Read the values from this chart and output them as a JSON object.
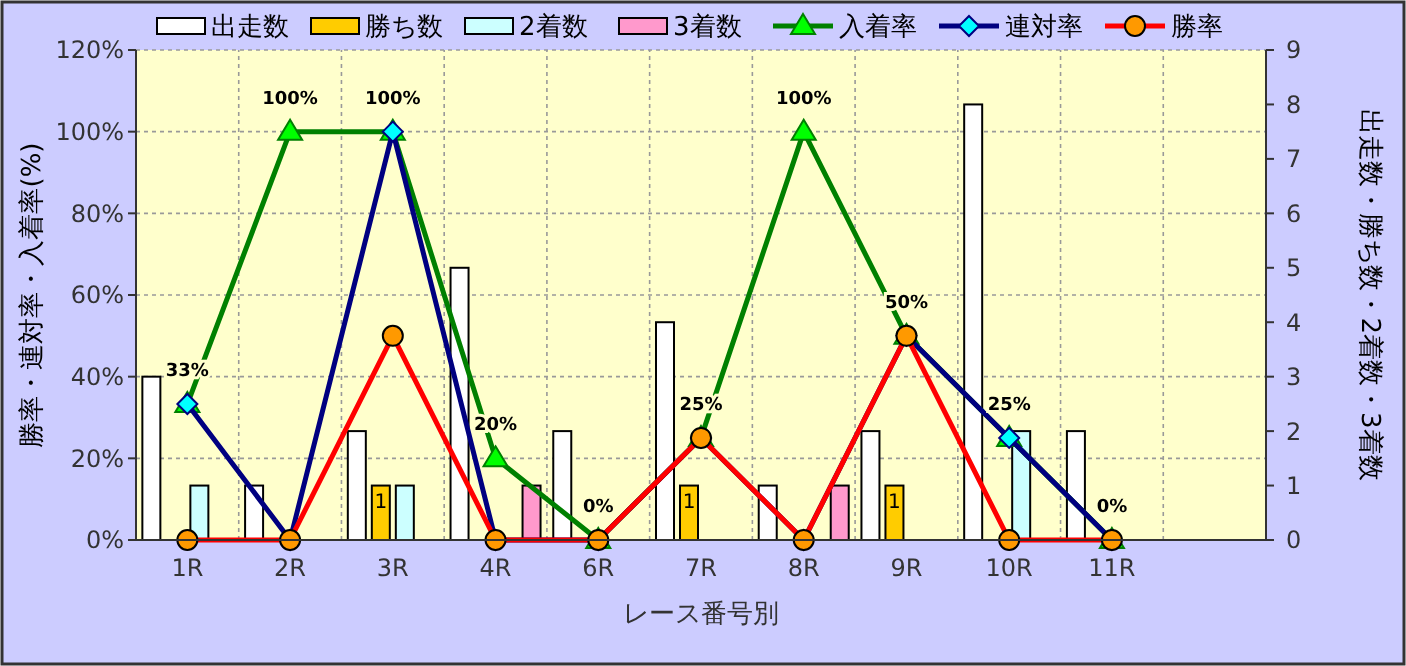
{
  "chart_data": {
    "type": "bar",
    "xlabel": "レース番号別",
    "ylabel": "勝率・連対率・入着率(%)",
    "y2label": "出走数・勝ち数・2着数・3着数",
    "categories": [
      "1R",
      "2R",
      "3R",
      "4R",
      "6R",
      "7R",
      "8R",
      "9R",
      "10R",
      "11R",
      null
    ],
    "series": [
      {
        "name": "出走数",
        "axis": "y2",
        "color": "#ffffff",
        "values": [
          3,
          1,
          2,
          5,
          2,
          4,
          1,
          2,
          8,
          2,
          null
        ]
      },
      {
        "name": "勝ち数",
        "axis": "y2",
        "color": "#ffcc00",
        "values": [
          0,
          0,
          1,
          0,
          0,
          1,
          0,
          1,
          0,
          0,
          null
        ],
        "value_labels": [
          null,
          null,
          "1",
          null,
          null,
          "1",
          null,
          "1",
          null,
          null,
          null
        ]
      },
      {
        "name": "2着数",
        "axis": "y2",
        "color": "#ccffff",
        "values": [
          1,
          0,
          1,
          0,
          0,
          0,
          0,
          0,
          2,
          0,
          null
        ]
      },
      {
        "name": "3着数",
        "axis": "y2",
        "color": "#ff99cc",
        "values": [
          0,
          0,
          0,
          1,
          0,
          0,
          1,
          0,
          0,
          0,
          null
        ]
      },
      {
        "name": "入着率",
        "type": "line",
        "color": "#008000",
        "marker": "triangle",
        "values": [
          33.3,
          100,
          100,
          20,
          0,
          25,
          100,
          50,
          25,
          0,
          null
        ],
        "value_labels": [
          "33%",
          "100%",
          "100%",
          "20%",
          "0%",
          "25%",
          "100%",
          "50%",
          "25%",
          "0%",
          null
        ]
      },
      {
        "name": "連対率",
        "type": "line",
        "color": "#000080",
        "marker": "diamond",
        "values": [
          33.3,
          0,
          100,
          0,
          0,
          25,
          0,
          50,
          25,
          0,
          null
        ]
      },
      {
        "name": "勝率",
        "type": "line",
        "color": "#ff0000",
        "marker": "circle",
        "values": [
          0,
          0,
          50,
          0,
          0,
          25,
          0,
          50,
          0,
          0,
          null
        ]
      }
    ],
    "ylim": [
      0,
      120
    ],
    "yticks": [
      {
        "value": 0,
        "label": "0%"
      },
      {
        "value": 20,
        "label": "20%"
      },
      {
        "value": 40,
        "label": "40%"
      },
      {
        "value": 60,
        "label": "60%"
      },
      {
        "value": 80,
        "label": "80%"
      },
      {
        "value": 100,
        "label": "100%"
      },
      {
        "value": 120,
        "label": "120%"
      }
    ],
    "y2lim": [
      0,
      9
    ],
    "y2ticks": [
      0,
      1,
      2,
      3,
      4,
      5,
      6,
      7,
      8,
      9
    ],
    "grid": true,
    "legend": "top"
  }
}
